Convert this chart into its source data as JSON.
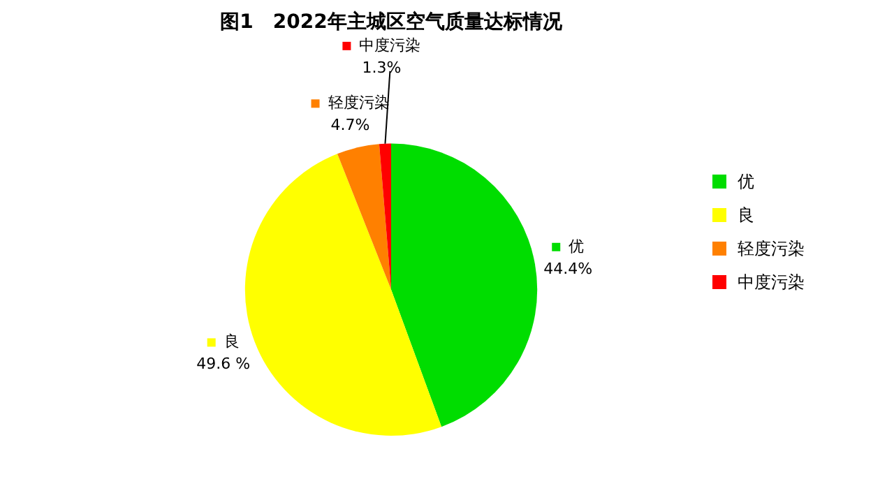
{
  "chart_data": {
    "type": "pie",
    "title": "图1　2022年主城区空气质量达标情况",
    "categories": [
      "优",
      "良",
      "轻度污染",
      "中度污染"
    ],
    "values": [
      44.4,
      49.6,
      4.7,
      1.3
    ],
    "colors": [
      "#00dd00",
      "#ffff00",
      "#ff8000",
      "#ff0000"
    ],
    "value_labels": [
      "44.4%",
      "49.6 %",
      "4.7%",
      "1.3%"
    ],
    "legend": "right"
  }
}
